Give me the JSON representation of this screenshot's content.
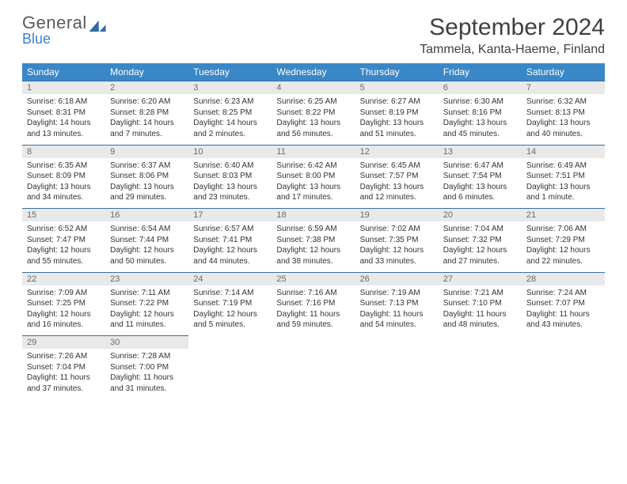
{
  "logo": {
    "top": "General",
    "bottom": "Blue"
  },
  "title": "September 2024",
  "location": "Tammela, Kanta-Haeme, Finland",
  "header_bg": "#3a87c7",
  "daynum_bg": "#e9e9e9",
  "rule_color": "#3a6fa0",
  "weekdays": [
    "Sunday",
    "Monday",
    "Tuesday",
    "Wednesday",
    "Thursday",
    "Friday",
    "Saturday"
  ],
  "weeks": [
    [
      {
        "n": "1",
        "sr": "6:18 AM",
        "ss": "8:31 PM",
        "dl": "14 hours and 13 minutes."
      },
      {
        "n": "2",
        "sr": "6:20 AM",
        "ss": "8:28 PM",
        "dl": "14 hours and 7 minutes."
      },
      {
        "n": "3",
        "sr": "6:23 AM",
        "ss": "8:25 PM",
        "dl": "14 hours and 2 minutes."
      },
      {
        "n": "4",
        "sr": "6:25 AM",
        "ss": "8:22 PM",
        "dl": "13 hours and 56 minutes."
      },
      {
        "n": "5",
        "sr": "6:27 AM",
        "ss": "8:19 PM",
        "dl": "13 hours and 51 minutes."
      },
      {
        "n": "6",
        "sr": "6:30 AM",
        "ss": "8:16 PM",
        "dl": "13 hours and 45 minutes."
      },
      {
        "n": "7",
        "sr": "6:32 AM",
        "ss": "8:13 PM",
        "dl": "13 hours and 40 minutes."
      }
    ],
    [
      {
        "n": "8",
        "sr": "6:35 AM",
        "ss": "8:09 PM",
        "dl": "13 hours and 34 minutes."
      },
      {
        "n": "9",
        "sr": "6:37 AM",
        "ss": "8:06 PM",
        "dl": "13 hours and 29 minutes."
      },
      {
        "n": "10",
        "sr": "6:40 AM",
        "ss": "8:03 PM",
        "dl": "13 hours and 23 minutes."
      },
      {
        "n": "11",
        "sr": "6:42 AM",
        "ss": "8:00 PM",
        "dl": "13 hours and 17 minutes."
      },
      {
        "n": "12",
        "sr": "6:45 AM",
        "ss": "7:57 PM",
        "dl": "13 hours and 12 minutes."
      },
      {
        "n": "13",
        "sr": "6:47 AM",
        "ss": "7:54 PM",
        "dl": "13 hours and 6 minutes."
      },
      {
        "n": "14",
        "sr": "6:49 AM",
        "ss": "7:51 PM",
        "dl": "13 hours and 1 minute."
      }
    ],
    [
      {
        "n": "15",
        "sr": "6:52 AM",
        "ss": "7:47 PM",
        "dl": "12 hours and 55 minutes."
      },
      {
        "n": "16",
        "sr": "6:54 AM",
        "ss": "7:44 PM",
        "dl": "12 hours and 50 minutes."
      },
      {
        "n": "17",
        "sr": "6:57 AM",
        "ss": "7:41 PM",
        "dl": "12 hours and 44 minutes."
      },
      {
        "n": "18",
        "sr": "6:59 AM",
        "ss": "7:38 PM",
        "dl": "12 hours and 38 minutes."
      },
      {
        "n": "19",
        "sr": "7:02 AM",
        "ss": "7:35 PM",
        "dl": "12 hours and 33 minutes."
      },
      {
        "n": "20",
        "sr": "7:04 AM",
        "ss": "7:32 PM",
        "dl": "12 hours and 27 minutes."
      },
      {
        "n": "21",
        "sr": "7:06 AM",
        "ss": "7:29 PM",
        "dl": "12 hours and 22 minutes."
      }
    ],
    [
      {
        "n": "22",
        "sr": "7:09 AM",
        "ss": "7:25 PM",
        "dl": "12 hours and 16 minutes."
      },
      {
        "n": "23",
        "sr": "7:11 AM",
        "ss": "7:22 PM",
        "dl": "12 hours and 11 minutes."
      },
      {
        "n": "24",
        "sr": "7:14 AM",
        "ss": "7:19 PM",
        "dl": "12 hours and 5 minutes."
      },
      {
        "n": "25",
        "sr": "7:16 AM",
        "ss": "7:16 PM",
        "dl": "11 hours and 59 minutes."
      },
      {
        "n": "26",
        "sr": "7:19 AM",
        "ss": "7:13 PM",
        "dl": "11 hours and 54 minutes."
      },
      {
        "n": "27",
        "sr": "7:21 AM",
        "ss": "7:10 PM",
        "dl": "11 hours and 48 minutes."
      },
      {
        "n": "28",
        "sr": "7:24 AM",
        "ss": "7:07 PM",
        "dl": "11 hours and 43 minutes."
      }
    ],
    [
      {
        "n": "29",
        "sr": "7:26 AM",
        "ss": "7:04 PM",
        "dl": "11 hours and 37 minutes."
      },
      {
        "n": "30",
        "sr": "7:28 AM",
        "ss": "7:00 PM",
        "dl": "11 hours and 31 minutes."
      },
      null,
      null,
      null,
      null,
      null
    ]
  ],
  "labels": {
    "sunrise": "Sunrise:",
    "sunset": "Sunset:",
    "daylight": "Daylight:"
  }
}
